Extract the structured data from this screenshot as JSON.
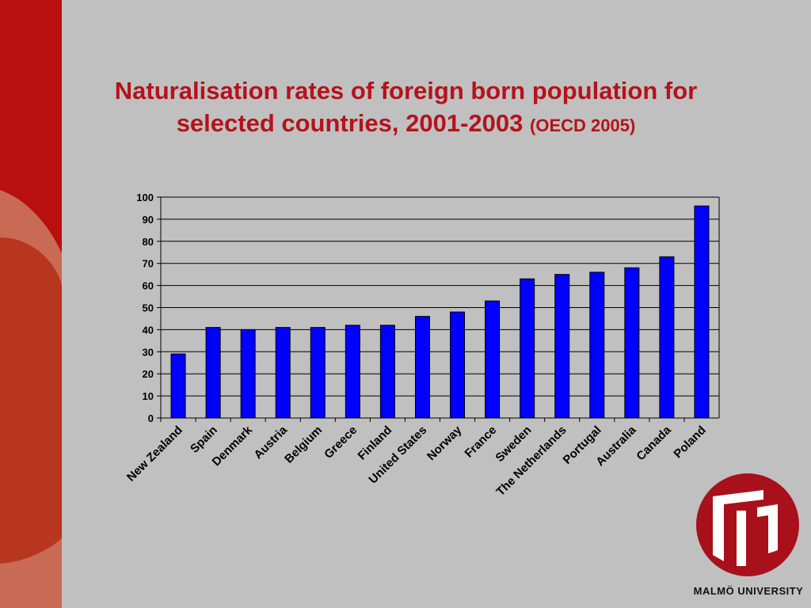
{
  "slide": {
    "title_main": "Naturalisation rates of foreign born population for selected countries, 2001-2003",
    "title_source": "(OECD 2005)",
    "accent_color": "#b5121b",
    "background_color": "#c0c0c0",
    "logo_text": "MALMÖ UNIVERSITY"
  },
  "chart_data": {
    "type": "bar",
    "title": "",
    "xlabel": "",
    "ylabel": "",
    "categories": [
      "New Zealand",
      "Spain",
      "Denmark",
      "Austria",
      "Belgium",
      "Greece",
      "Finland",
      "United States",
      "Norway",
      "France",
      "Sweden",
      "The Netherlands",
      "Portugal",
      "Australia",
      "Canada",
      "Poland"
    ],
    "values": [
      29,
      41,
      40,
      41,
      41,
      42,
      42,
      46,
      48,
      53,
      63,
      65,
      66,
      68,
      73,
      96
    ],
    "ylim": [
      0,
      100
    ],
    "yticks": [
      0,
      10,
      20,
      30,
      40,
      50,
      60,
      70,
      80,
      90,
      100
    ],
    "bar_color": "#0000ff",
    "grid": true,
    "legend": "none"
  }
}
